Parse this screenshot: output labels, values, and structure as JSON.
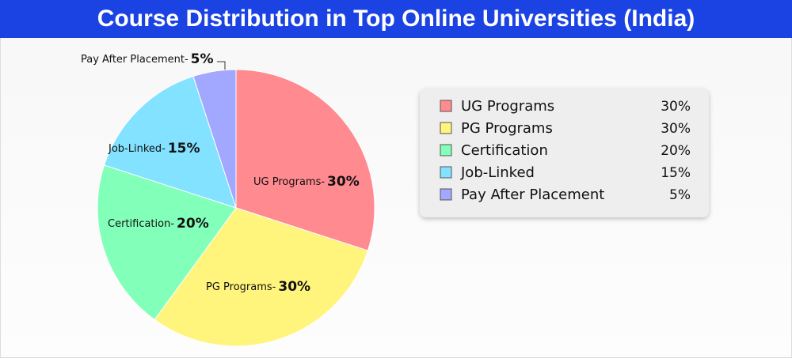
{
  "chart_data": {
    "type": "pie",
    "title": "Course Distribution in Top Online Universities (India)",
    "categories": [
      "UG Programs",
      "PG Programs",
      "Certification",
      "Job-Linked",
      "Pay After Placement"
    ],
    "slice_labels": [
      "UG Programs-",
      "PG Programs-",
      "Certification-",
      "Job-Linked-",
      "Pay After Placement-"
    ],
    "values": [
      30,
      30,
      20,
      15,
      5
    ],
    "value_labels": [
      "30%",
      "30%",
      "20%",
      "15%",
      "5%"
    ],
    "colors": [
      "#ff8a90",
      "#fff47c",
      "#82ffb9",
      "#82e2ff",
      "#a2a8ff"
    ],
    "legend": "right"
  }
}
